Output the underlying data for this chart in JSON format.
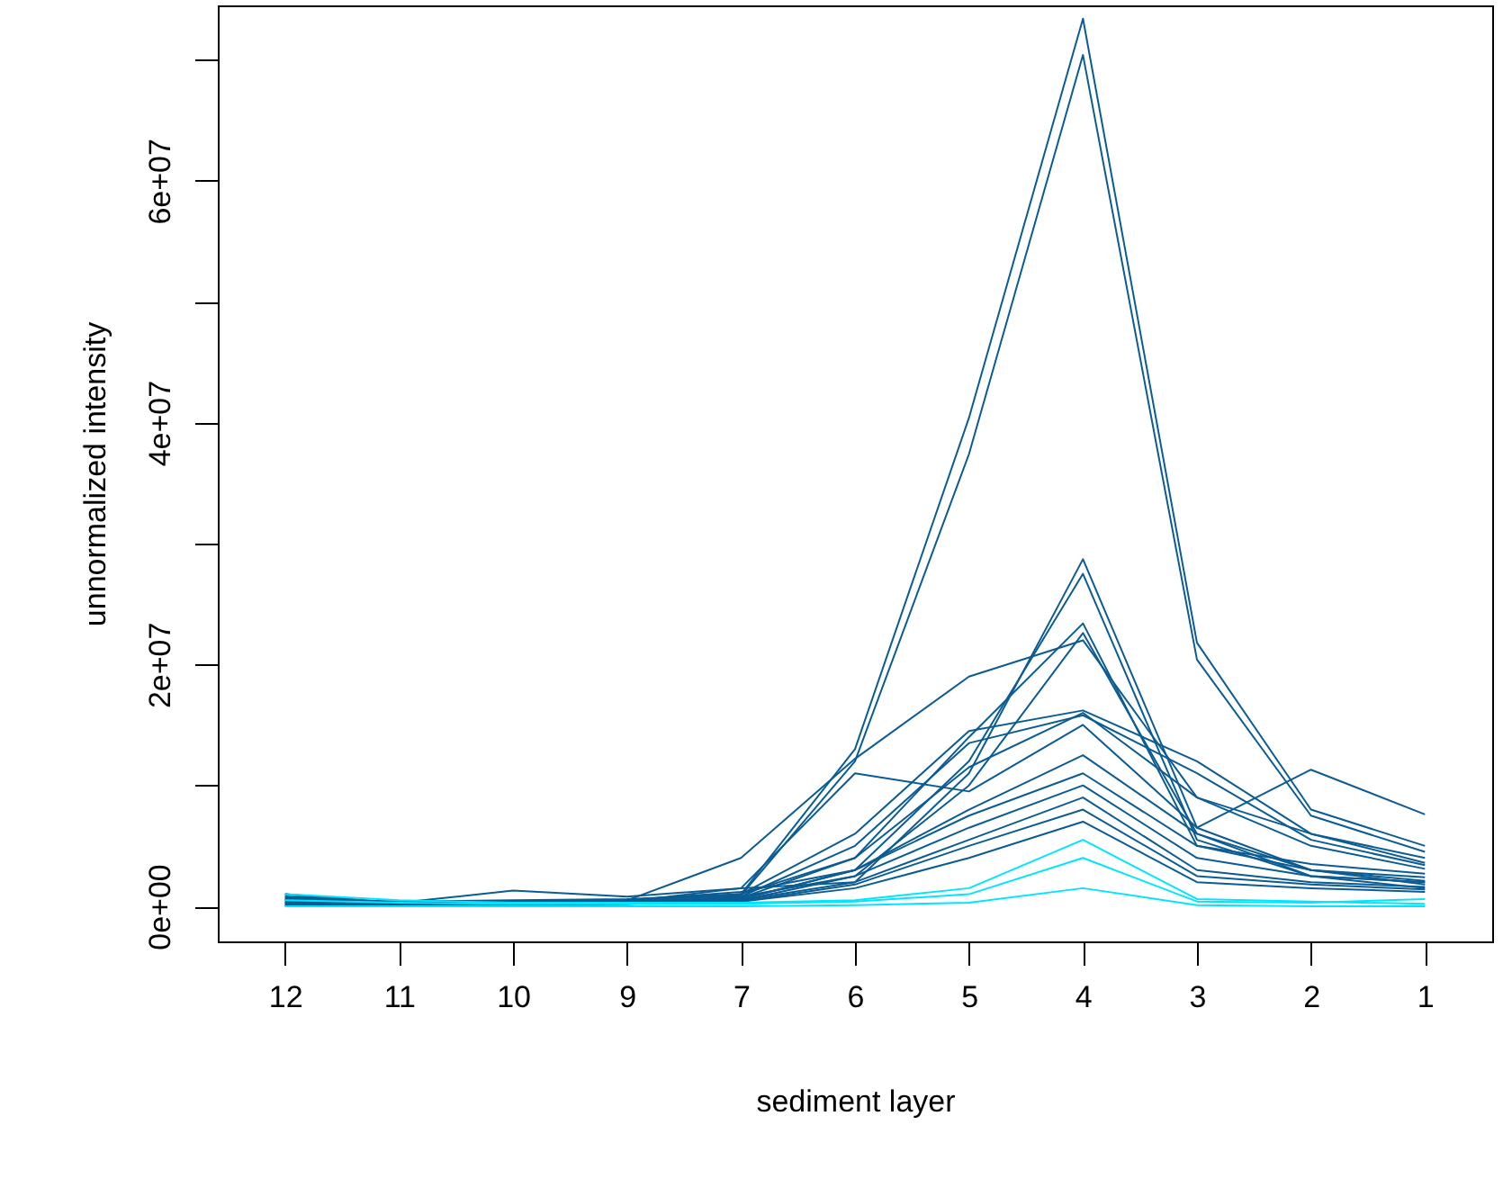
{
  "chart_data": {
    "type": "line",
    "xlabel": "sediment layer",
    "ylabel": "unnormalized intensity",
    "categories": [
      "12",
      "11",
      "10",
      "9",
      "7",
      "6",
      "5",
      "4",
      "3",
      "2",
      "1"
    ],
    "ylim": [
      -2900000,
      74500000
    ],
    "yticks": [
      {
        "value": 0,
        "label": "0e+00"
      },
      {
        "value": 10000000,
        "label": null
      },
      {
        "value": 20000000,
        "label": "2e+07"
      },
      {
        "value": 30000000,
        "label": null
      },
      {
        "value": 40000000,
        "label": "4e+07"
      },
      {
        "value": 50000000,
        "label": null
      },
      {
        "value": 60000000,
        "label": "6e+07"
      },
      {
        "value": 70000000,
        "label": null
      }
    ],
    "grid": false,
    "legend": false,
    "line_style": "solid",
    "series": [
      {
        "color": "#0b5c93",
        "values": [
          500000,
          400000,
          500000,
          600000,
          1000000,
          13000000,
          40400000,
          73400000,
          21800000,
          8000000,
          5000000
        ]
      },
      {
        "color": "#0b5c93",
        "values": [
          600000,
          400000,
          400000,
          500000,
          900000,
          12000000,
          37400000,
          70400000,
          20400000,
          7500000,
          4500000
        ]
      },
      {
        "color": "#0b5c93",
        "values": [
          800000,
          300000,
          1300000,
          800000,
          1500000,
          2000000,
          11000000,
          28700000,
          6500000,
          3000000,
          2100000
        ]
      },
      {
        "color": "#0b5c93",
        "values": [
          300000,
          300000,
          400000,
          500000,
          1200000,
          3000000,
          12000000,
          27500000,
          5500000,
          2500000,
          2000000
        ]
      },
      {
        "color": "#0b5c93",
        "values": [
          500000,
          300000,
          300000,
          400000,
          1000000,
          4000000,
          14000000,
          23400000,
          5000000,
          3000000,
          1800000
        ]
      },
      {
        "color": "#0b5c93",
        "values": [
          800000,
          200000,
          300000,
          300000,
          800000,
          2500000,
          10000000,
          22600000,
          6000000,
          2500000,
          1500000
        ]
      },
      {
        "color": "#0b5c93",
        "values": [
          300000,
          300000,
          400000,
          500000,
          4000000,
          12200000,
          19000000,
          22000000,
          9000000,
          6000000,
          3600000
        ]
      },
      {
        "color": "#0b5c93",
        "values": [
          1000000,
          300000,
          300000,
          400000,
          1500000,
          11000000,
          9500000,
          15000000,
          6500000,
          11300000,
          7600000
        ]
      },
      {
        "color": "#0b5c93",
        "values": [
          100000,
          200000,
          300000,
          400000,
          1000000,
          6000000,
          14500000,
          16200000,
          12000000,
          6000000,
          4000000
        ]
      },
      {
        "color": "#0b5c93",
        "values": [
          100000,
          200000,
          200000,
          300000,
          800000,
          5000000,
          13500000,
          15800000,
          11000000,
          5500000,
          3400000
        ]
      },
      {
        "color": "#0b5c93",
        "values": [
          200000,
          200000,
          300000,
          300000,
          700000,
          4000000,
          11500000,
          16000000,
          9000000,
          5000000,
          3100000
        ]
      },
      {
        "color": "#0b5c93",
        "values": [
          700000,
          200000,
          200000,
          300000,
          600000,
          3000000,
          8000000,
          12500000,
          6000000,
          3000000,
          2400000
        ]
      },
      {
        "color": "#0b5c93",
        "values": [
          400000,
          200000,
          200000,
          300000,
          600000,
          3000000,
          7500000,
          11000000,
          5000000,
          3500000,
          2700000
        ]
      },
      {
        "color": "#0b5c93",
        "values": [
          1000000,
          100000,
          200000,
          200000,
          500000,
          2500000,
          6500000,
          10000000,
          4000000,
          2500000,
          2000000
        ]
      },
      {
        "color": "#0b5c93",
        "values": [
          300000,
          100000,
          200000,
          200000,
          500000,
          2000000,
          5500000,
          9000000,
          3000000,
          2000000,
          1600000
        ]
      },
      {
        "color": "#0b5c93",
        "values": [
          600000,
          100000,
          100000,
          200000,
          400000,
          1800000,
          5000000,
          8000000,
          2500000,
          1800000,
          1400000
        ]
      },
      {
        "color": "#0b5c93",
        "values": [
          100000,
          100000,
          100000,
          200000,
          400000,
          1500000,
          4000000,
          7000000,
          2000000,
          1500000,
          1200000
        ]
      },
      {
        "color": "#00e5ff",
        "values": [
          1000000,
          500000,
          300000,
          300000,
          300000,
          500000,
          1500000,
          5500000,
          600000,
          400000,
          200000
        ]
      },
      {
        "color": "#00e5ff",
        "values": [
          500000,
          300000,
          200000,
          200000,
          200000,
          400000,
          1000000,
          4000000,
          400000,
          300000,
          600000
        ]
      },
      {
        "color": "#00e5ff",
        "values": [
          0,
          0,
          0,
          0,
          0,
          100000,
          300000,
          1500000,
          100000,
          0,
          0
        ]
      }
    ]
  }
}
